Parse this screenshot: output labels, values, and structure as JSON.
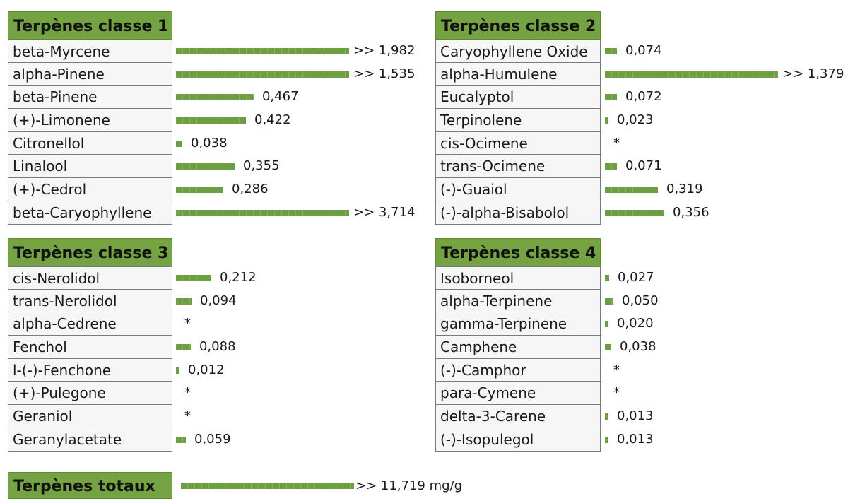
{
  "colors": {
    "header_bg": "#75a343",
    "bar": "#6e9e43",
    "name_bg": "#f6f6f6"
  },
  "chart_data": [
    {
      "type": "bar",
      "title": "Terpènes classe 1",
      "categories": [
        "beta-Myrcene",
        "alpha-Pinene",
        "beta-Pinene",
        "(+)-Limonene",
        "Citronellol",
        "Linalool",
        "(+)-Cedrol",
        "beta-Caryophyllene"
      ],
      "values": [
        1.982,
        1.535,
        0.467,
        0.422,
        0.038,
        0.355,
        0.286,
        3.714
      ],
      "labels": [
        ">> 1,982",
        ">> 1,535",
        "0,467",
        "0,422",
        "0,038",
        "0,355",
        "0,286",
        ">> 3,714"
      ],
      "capped": [
        true,
        true,
        false,
        false,
        false,
        false,
        false,
        true
      ]
    },
    {
      "type": "bar",
      "title": "Terpènes classe 2",
      "categories": [
        "Caryophyllene Oxide",
        "alpha-Humulene",
        "Eucalyptol",
        "Terpinolene",
        "cis-Ocimene",
        "trans-Ocimene",
        "(-)-Guaiol",
        "(-)-alpha-Bisabolol"
      ],
      "values": [
        0.074,
        1.379,
        0.072,
        0.023,
        null,
        0.071,
        0.319,
        0.356
      ],
      "labels": [
        "0,074",
        ">> 1,379",
        "0,072",
        "0,023",
        "*",
        "0,071",
        "0,319",
        "0,356"
      ],
      "capped": [
        false,
        true,
        false,
        false,
        false,
        false,
        false,
        false
      ]
    },
    {
      "type": "bar",
      "title": "Terpènes classe 3",
      "categories": [
        "cis-Nerolidol",
        "trans-Nerolidol",
        "alpha-Cedrene",
        "Fenchol",
        "l-(-)-Fenchone",
        "(+)-Pulegone",
        "Geraniol",
        "Geranylacetate"
      ],
      "values": [
        0.212,
        0.094,
        null,
        0.088,
        0.012,
        null,
        null,
        0.059
      ],
      "labels": [
        "0,212",
        "0,094",
        "*",
        "0,088",
        "0,012",
        "*",
        "*",
        "0,059"
      ],
      "capped": [
        false,
        false,
        false,
        false,
        false,
        false,
        false,
        false
      ]
    },
    {
      "type": "bar",
      "title": "Terpènes classe 4",
      "categories": [
        "Isoborneol",
        "alpha-Terpinene",
        "gamma-Terpinene",
        "Camphene",
        "(-)-Camphor",
        "para-Cymene",
        "delta-3-Carene",
        "(-)-Isopulegol"
      ],
      "values": [
        0.027,
        0.05,
        0.02,
        0.038,
        null,
        null,
        0.013,
        0.013
      ],
      "labels": [
        "0,027",
        "0,050",
        "0,020",
        "0,038",
        "*",
        "*",
        "0,013",
        "0,013"
      ],
      "capped": [
        false,
        false,
        false,
        false,
        false,
        false,
        false,
        false
      ]
    }
  ],
  "total": {
    "title": "Terpènes totaux",
    "value": 11.719,
    "label": ">> 11,719 mg/g"
  }
}
